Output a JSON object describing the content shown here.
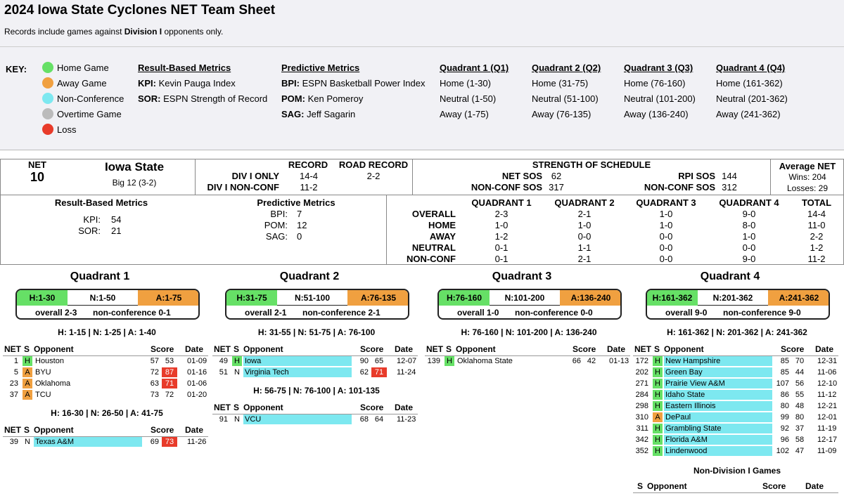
{
  "title": "2024 Iowa State Cyclones NET Team Sheet",
  "subtitle_pre": "Records include games against ",
  "subtitle_bold": "Division I",
  "subtitle_post": " opponents only.",
  "key": {
    "label": "KEY:",
    "legend": [
      {
        "label": "Home Game",
        "color": "#66e066"
      },
      {
        "label": "Away Game",
        "color": "#f0a040"
      },
      {
        "label": "Non-Conference",
        "color": "#7de8f0"
      },
      {
        "label": "Overtime Game",
        "color": "#bbbbbb"
      },
      {
        "label": "Loss",
        "color": "#e83b2a"
      }
    ],
    "result_based": {
      "header": "Result-Based Metrics",
      "items": [
        [
          "KPI:",
          "Kevin Pauga Index"
        ],
        [
          "SOR:",
          "ESPN Strength of Record"
        ]
      ]
    },
    "predictive": {
      "header": "Predictive Metrics",
      "items": [
        [
          "BPI:",
          "ESPN Basketball Power Index"
        ],
        [
          "POM:",
          "Ken Pomeroy"
        ],
        [
          "SAG:",
          "Jeff Sagarin"
        ]
      ]
    },
    "quadrants": [
      {
        "header": "Quadrant 1 (Q1)",
        "items": [
          "Home (1-30)",
          "Neutral (1-50)",
          "Away (1-75)"
        ]
      },
      {
        "header": "Quadrant 2 (Q2)",
        "items": [
          "Home (31-75)",
          "Neutral (51-100)",
          "Away (76-135)"
        ]
      },
      {
        "header": "Quadrant 3 (Q3)",
        "items": [
          "Home (76-160)",
          "Neutral (101-200)",
          "Away (136-240)"
        ]
      },
      {
        "header": "Quadrant 4 (Q4)",
        "items": [
          "Home (161-362)",
          "Neutral (201-362)",
          "Away (241-362)"
        ]
      }
    ]
  },
  "summary": {
    "net_label": "NET",
    "net_value": "10",
    "team": "Iowa State",
    "conference": "Big 12 (3-2)",
    "record_header": "RECORD",
    "road_header": "ROAD RECORD",
    "div1_label": "DIV I ONLY",
    "div1_value": "14-4",
    "road_value": "2-2",
    "nonconf_label": "DIV I NON-CONF",
    "nonconf_value": "11-2",
    "sos_header": "STRENGTH OF SCHEDULE",
    "net_sos_label": "NET SOS",
    "net_sos": "62",
    "rpi_sos_label": "RPI SOS",
    "rpi_sos": "144",
    "nc_sos_label": "NON-CONF SOS",
    "nc_sos": "317",
    "nc_sos2_label": "NON-CONF SOS",
    "nc_sos2": "312",
    "avg_net_label": "Average NET",
    "wins": "Wins: 204",
    "losses": "Losses: 29"
  },
  "metrics": {
    "result_header": "Result-Based Metrics",
    "kpi_label": "KPI:",
    "kpi": "54",
    "sor_label": "SOR:",
    "sor": "21",
    "pred_header": "Predictive Metrics",
    "bpi_label": "BPI:",
    "bpi": "7",
    "pom_label": "POM:",
    "pom": "12",
    "sag_label": "SAG:",
    "sag": "0"
  },
  "quad_table": {
    "headers": [
      "QUADRANT 1",
      "QUADRANT 2",
      "QUADRANT 3",
      "QUADRANT 4",
      "TOTAL"
    ],
    "rows": [
      {
        "label": "OVERALL",
        "values": [
          "2-3",
          "2-1",
          "1-0",
          "9-0",
          "14-4"
        ]
      },
      {
        "label": "HOME",
        "values": [
          "1-0",
          "1-0",
          "1-0",
          "8-0",
          "11-0"
        ]
      },
      {
        "label": "AWAY",
        "values": [
          "1-2",
          "0-0",
          "0-0",
          "1-0",
          "2-2"
        ]
      },
      {
        "label": "NEUTRAL",
        "values": [
          "0-1",
          "1-1",
          "0-0",
          "0-0",
          "1-2"
        ]
      },
      {
        "label": "NON-CONF",
        "values": [
          "0-1",
          "2-1",
          "0-0",
          "9-0",
          "11-2"
        ]
      }
    ]
  },
  "col_headers": {
    "net": "NET",
    "s": "S",
    "opp": "Opponent",
    "score": "Score",
    "date": "Date"
  },
  "quadrants": [
    {
      "title": "Quadrant 1",
      "pill": {
        "h": "H:1-30",
        "n": "N:1-50",
        "a": "A:1-75",
        "overall": "overall 2-3",
        "nonconf": "non-conference 0-1"
      },
      "groups": [
        {
          "header": "H: 1-15 | N: 1-25 | A: 1-40",
          "games": [
            {
              "net": "1",
              "s": "H",
              "opp": "Houston",
              "nc": false,
              "us": "57",
              "them": "53",
              "loss": false,
              "date": "01-09"
            },
            {
              "net": "5",
              "s": "A",
              "opp": "BYU",
              "nc": false,
              "us": "72",
              "them": "87",
              "loss": true,
              "date": "01-16"
            },
            {
              "net": "23",
              "s": "A",
              "opp": "Oklahoma",
              "nc": false,
              "us": "63",
              "them": "71",
              "loss": true,
              "date": "01-06"
            },
            {
              "net": "37",
              "s": "A",
              "opp": "TCU",
              "nc": false,
              "us": "73",
              "them": "72",
              "loss": false,
              "date": "01-20"
            }
          ]
        },
        {
          "header": "H: 16-30 | N: 26-50 | A: 41-75",
          "games": [
            {
              "net": "39",
              "s": "N",
              "opp": "Texas A&M",
              "nc": true,
              "us": "69",
              "them": "73",
              "loss": true,
              "date": "11-26"
            }
          ]
        }
      ]
    },
    {
      "title": "Quadrant 2",
      "pill": {
        "h": "H:31-75",
        "n": "N:51-100",
        "a": "A:76-135",
        "overall": "overall 2-1",
        "nonconf": "non-conference 2-1"
      },
      "groups": [
        {
          "header": "H: 31-55 | N: 51-75 | A: 76-100",
          "games": [
            {
              "net": "49",
              "s": "H",
              "opp": "Iowa",
              "nc": true,
              "us": "90",
              "them": "65",
              "loss": false,
              "date": "12-07"
            },
            {
              "net": "51",
              "s": "N",
              "opp": "Virginia Tech",
              "nc": true,
              "us": "62",
              "them": "71",
              "loss": true,
              "date": "11-24"
            }
          ]
        },
        {
          "header": "H: 56-75 | N: 76-100 | A: 101-135",
          "games": [
            {
              "net": "91",
              "s": "N",
              "opp": "VCU",
              "nc": true,
              "us": "68",
              "them": "64",
              "loss": false,
              "date": "11-23"
            }
          ]
        }
      ]
    },
    {
      "title": "Quadrant 3",
      "pill": {
        "h": "H:76-160",
        "n": "N:101-200",
        "a": "A:136-240",
        "overall": "overall 1-0",
        "nonconf": "non-conference 0-0"
      },
      "groups": [
        {
          "header": "H: 76-160 | N: 101-200 | A: 136-240",
          "games": [
            {
              "net": "139",
              "s": "H",
              "opp": "Oklahoma State",
              "nc": false,
              "us": "66",
              "them": "42",
              "loss": false,
              "date": "01-13"
            }
          ]
        }
      ]
    },
    {
      "title": "Quadrant 4",
      "pill": {
        "h": "H:161-362",
        "n": "N:201-362",
        "a": "A:241-362",
        "overall": "overall 9-0",
        "nonconf": "non-conference 9-0"
      },
      "groups": [
        {
          "header": "H: 161-362 | N: 201-362 | A: 241-362",
          "games": [
            {
              "net": "172",
              "s": "H",
              "opp": "New Hampshire",
              "nc": true,
              "us": "85",
              "them": "70",
              "loss": false,
              "date": "12-31"
            },
            {
              "net": "202",
              "s": "H",
              "opp": "Green Bay",
              "nc": true,
              "us": "85",
              "them": "44",
              "loss": false,
              "date": "11-06"
            },
            {
              "net": "271",
              "s": "H",
              "opp": "Prairie View A&M",
              "nc": true,
              "us": "107",
              "them": "56",
              "loss": false,
              "date": "12-10"
            },
            {
              "net": "284",
              "s": "H",
              "opp": "Idaho State",
              "nc": true,
              "us": "86",
              "them": "55",
              "loss": false,
              "date": "11-12"
            },
            {
              "net": "298",
              "s": "H",
              "opp": "Eastern Illinois",
              "nc": true,
              "us": "80",
              "them": "48",
              "loss": false,
              "date": "12-21"
            },
            {
              "net": "310",
              "s": "A",
              "opp": "DePaul",
              "nc": true,
              "us": "99",
              "them": "80",
              "loss": false,
              "date": "12-01"
            },
            {
              "net": "311",
              "s": "H",
              "opp": "Grambling State",
              "nc": true,
              "us": "92",
              "them": "37",
              "loss": false,
              "date": "11-19"
            },
            {
              "net": "342",
              "s": "H",
              "opp": "Florida A&M",
              "nc": true,
              "us": "96",
              "them": "58",
              "loss": false,
              "date": "12-17"
            },
            {
              "net": "352",
              "s": "H",
              "opp": "Lindenwood",
              "nc": true,
              "us": "102",
              "them": "47",
              "loss": false,
              "date": "11-09"
            }
          ]
        }
      ],
      "non_div": {
        "header": "Non-Division I Games",
        "s": "S",
        "opp": "Opponent",
        "score": "Score",
        "date": "Date"
      }
    }
  ]
}
